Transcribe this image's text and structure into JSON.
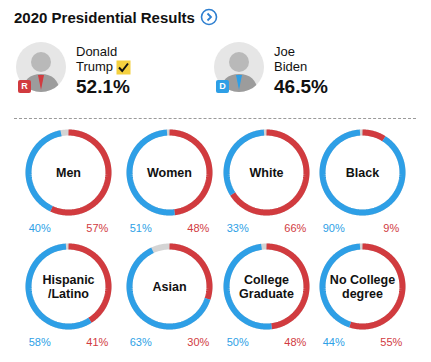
{
  "header": {
    "title": "2020 Presidential Results"
  },
  "candidates": [
    {
      "name": "Donald Trump",
      "party": "R",
      "share": "52.1%",
      "color": "#d13b3f",
      "winner": true
    },
    {
      "name": "Joe Biden",
      "party": "D",
      "share": "46.5%",
      "color": "#2e9fe6",
      "winner": false
    }
  ],
  "chart_data": [
    {
      "type": "donut",
      "title": "Men",
      "values": [
        40,
        57
      ],
      "value_labels": [
        "40%",
        "57%"
      ],
      "colors": [
        "#2e9fe6",
        "#d13b3f"
      ],
      "data_labels": true
    },
    {
      "type": "donut",
      "title": "Women",
      "values": [
        51,
        48
      ],
      "value_labels": [
        "51%",
        "48%"
      ],
      "colors": [
        "#2e9fe6",
        "#d13b3f"
      ],
      "data_labels": true
    },
    {
      "type": "donut",
      "title": "White",
      "values": [
        33,
        66
      ],
      "value_labels": [
        "33%",
        "66%"
      ],
      "colors": [
        "#2e9fe6",
        "#d13b3f"
      ],
      "data_labels": true
    },
    {
      "type": "donut",
      "title": "Black",
      "values": [
        90,
        9
      ],
      "value_labels": [
        "90%",
        "9%"
      ],
      "colors": [
        "#2e9fe6",
        "#d13b3f"
      ],
      "data_labels": true
    },
    {
      "type": "donut",
      "title": "Hispanic /Latino",
      "values": [
        58,
        41
      ],
      "value_labels": [
        "58%",
        "41%"
      ],
      "colors": [
        "#2e9fe6",
        "#d13b3f"
      ],
      "data_labels": true
    },
    {
      "type": "donut",
      "title": "Asian",
      "values": [
        63,
        30
      ],
      "value_labels": [
        "63%",
        "30%"
      ],
      "colors": [
        "#2e9fe6",
        "#d13b3f"
      ],
      "data_labels": true
    },
    {
      "type": "donut",
      "title": "College Graduate",
      "values": [
        50,
        48
      ],
      "value_labels": [
        "50%",
        "48%"
      ],
      "colors": [
        "#2e9fe6",
        "#d13b3f"
      ],
      "data_labels": true
    },
    {
      "type": "donut",
      "title": "No College degree",
      "values": [
        44,
        55
      ],
      "value_labels": [
        "44%",
        "55%"
      ],
      "colors": [
        "#2e9fe6",
        "#d13b3f"
      ],
      "data_labels": true
    }
  ]
}
